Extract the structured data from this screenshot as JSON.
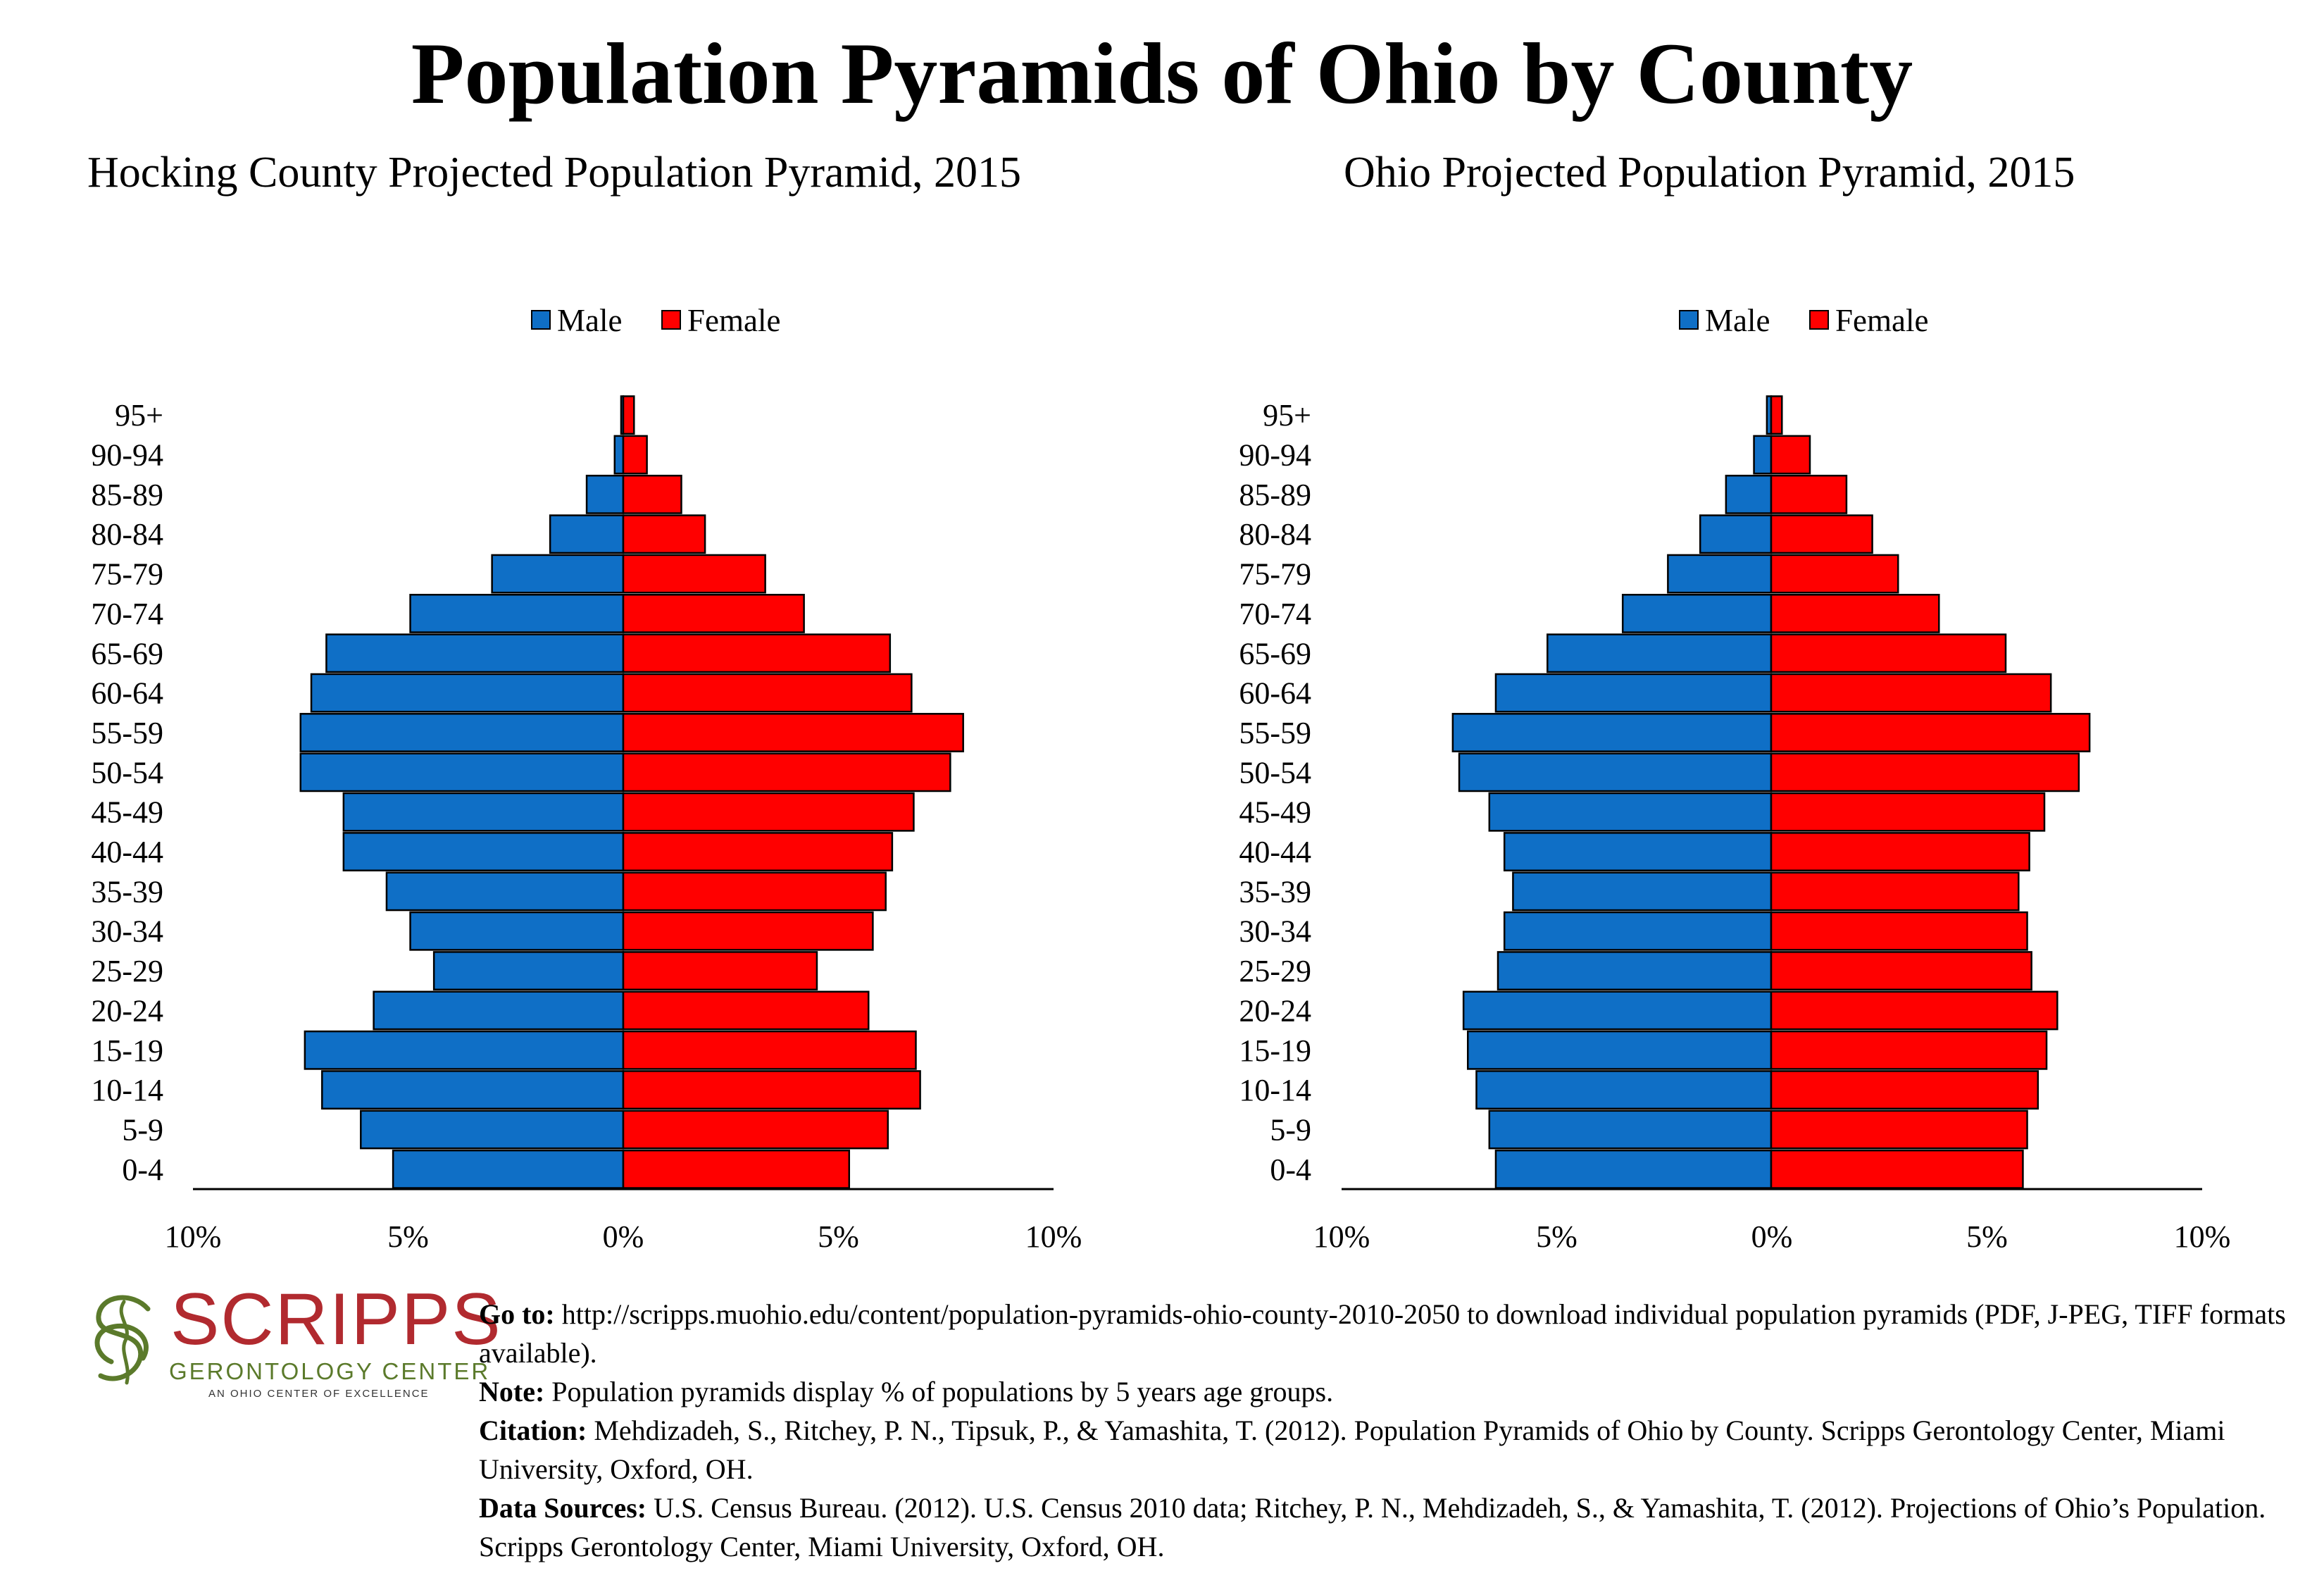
{
  "page": {
    "title": "Population Pyramids of Ohio by County"
  },
  "footer": {
    "logo": {
      "word": "SCRIPPS",
      "subtitle": "GERONTOLOGY CENTER",
      "tagline": "AN OHIO CENTER OF EXCELLENCE",
      "colors": {
        "word": "#b12a2f",
        "subtitle": "#5b7a2b"
      }
    },
    "goto_label": "Go to:",
    "goto_text": " http://scripps.muohio.edu/content/population-pyramids-ohio-county-2010-2050 to download individual population pyramids (PDF, J-PEG, TIFF formats available).",
    "note_label": "Note:",
    "note_text": " Population pyramids display % of populations by 5 years age groups.",
    "citation_label": "Citation:",
    "citation_text": " Mehdizadeh, S., Ritchey, P. N., Tipsuk, P., & Yamashita, T. (2012). Population Pyramids of Ohio by County. Scripps Gerontology Center, Miami University, Oxford, OH.",
    "sources_label": "Data Sources:",
    "sources_text": " U.S. Census Bureau. (2012). U.S. Census 2010 data; Ritchey, P. N., Mehdizadeh, S., & Yamashita, T. (2012). Projections of Ohio’s Population. Scripps Gerontology Center, Miami University, Oxford, OH."
  },
  "chart_data": [
    {
      "type": "bar",
      "orientation": "horizontal-pyramid",
      "title": "Hocking County Projected Population Pyramid, 2015",
      "categories": [
        "0-4",
        "5-9",
        "10-14",
        "15-19",
        "20-24",
        "25-29",
        "30-34",
        "35-39",
        "40-44",
        "45-49",
        "50-54",
        "55-59",
        "60-64",
        "65-69",
        "70-74",
        "75-79",
        "80-84",
        "85-89",
        "90-94",
        "95+"
      ],
      "series": [
        {
          "name": "Male",
          "color": "#0f6fc6",
          "values": [
            5.35,
            6.1,
            7.0,
            7.4,
            5.8,
            4.4,
            4.95,
            5.5,
            6.5,
            6.5,
            7.5,
            7.5,
            7.25,
            6.9,
            4.95,
            3.05,
            1.7,
            0.85,
            0.2,
            0.05
          ]
        },
        {
          "name": "Female",
          "color": "#ff0000",
          "values": [
            5.25,
            6.15,
            6.9,
            6.8,
            5.7,
            4.5,
            5.8,
            6.1,
            6.25,
            6.75,
            7.6,
            7.9,
            6.7,
            6.2,
            4.2,
            3.3,
            1.9,
            1.35,
            0.55,
            0.25
          ]
        }
      ],
      "xlim": [
        -10,
        10
      ],
      "xticks": [
        "10%",
        "5%",
        "0%",
        "5%",
        "10%"
      ],
      "legend": "top-center",
      "grid": false
    },
    {
      "type": "bar",
      "orientation": "horizontal-pyramid",
      "title": "Ohio Projected Population Pyramid, 2015",
      "categories": [
        "0-4",
        "5-9",
        "10-14",
        "15-19",
        "20-24",
        "25-29",
        "30-34",
        "35-39",
        "40-44",
        "45-49",
        "50-54",
        "55-59",
        "60-64",
        "65-69",
        "70-74",
        "75-79",
        "80-84",
        "85-89",
        "90-94",
        "95+"
      ],
      "series": [
        {
          "name": "Male",
          "color": "#0f6fc6",
          "values": [
            6.4,
            6.55,
            6.85,
            7.05,
            7.15,
            6.35,
            6.2,
            6.0,
            6.2,
            6.55,
            7.25,
            7.4,
            6.4,
            5.2,
            3.45,
            2.4,
            1.65,
            1.05,
            0.4,
            0.1
          ]
        },
        {
          "name": "Female",
          "color": "#ff0000",
          "values": [
            5.85,
            5.95,
            6.2,
            6.4,
            6.65,
            6.05,
            5.95,
            5.75,
            6.0,
            6.35,
            7.15,
            7.4,
            6.5,
            5.45,
            3.9,
            2.95,
            2.35,
            1.75,
            0.9,
            0.25
          ]
        }
      ],
      "xlim": [
        -10,
        10
      ],
      "xticks": [
        "10%",
        "5%",
        "0%",
        "5%",
        "10%"
      ],
      "legend": "top-center",
      "grid": false
    }
  ]
}
